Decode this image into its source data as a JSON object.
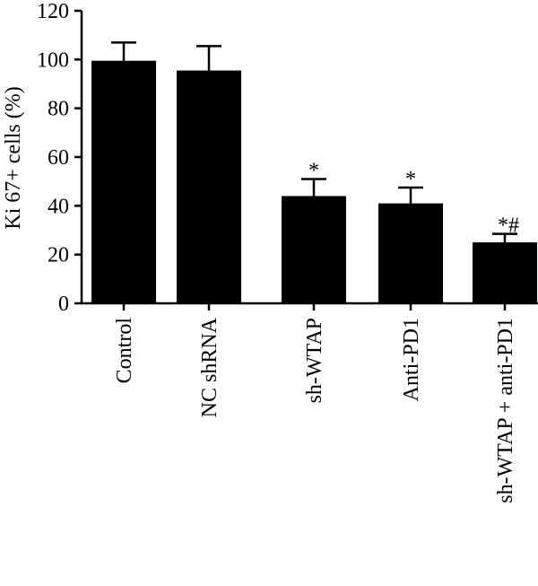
{
  "chart_data": {
    "type": "bar",
    "ylabel": "Ki 67+ cells (%)",
    "xlabel": "",
    "ylim": [
      0,
      120
    ],
    "yticks": [
      "0",
      "20",
      "40",
      "60",
      "80",
      "100",
      "120"
    ],
    "categories": [
      "Control",
      "NC shRNA",
      "sh-WTAP",
      "Anti-PD1",
      "sh-WTAP + anti-PD1"
    ],
    "values": [
      99.5,
      95.5,
      44,
      41,
      25
    ],
    "errors": [
      7.5,
      10,
      7,
      6.5,
      3.5
    ],
    "annotations": [
      "",
      "",
      "*",
      "*",
      "*#"
    ],
    "bar_color": "#000000",
    "grid": false
  }
}
